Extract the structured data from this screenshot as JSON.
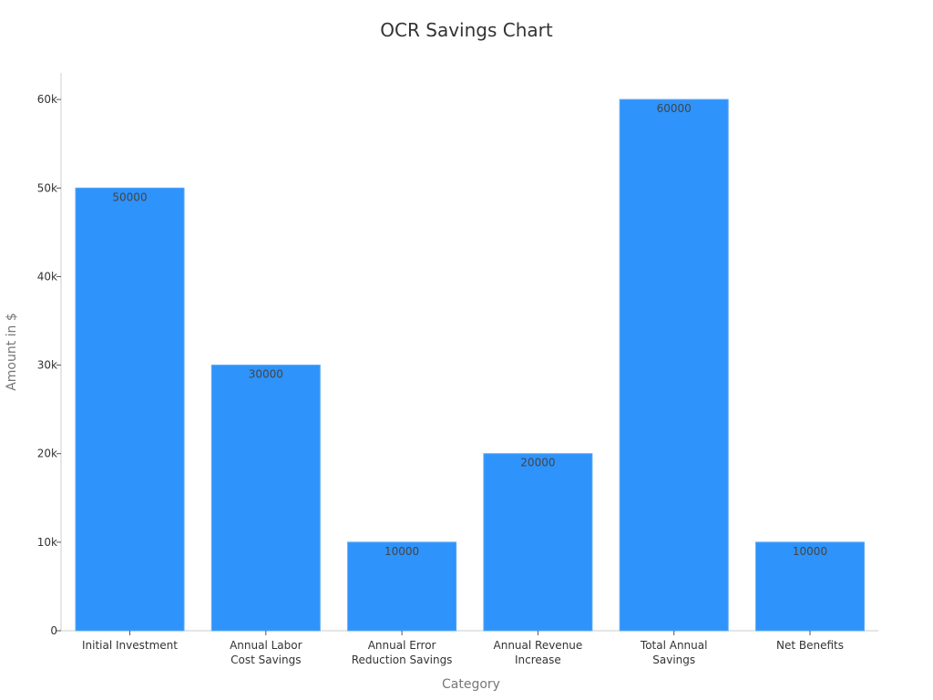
{
  "chart_data": {
    "type": "bar",
    "title": "OCR Savings Chart",
    "xlabel": "Category",
    "ylabel": "Amount in $",
    "categories": [
      [
        "Initial Investment"
      ],
      [
        "Annual Labor",
        "Cost Savings"
      ],
      [
        "Annual Error",
        "Reduction Savings"
      ],
      [
        "Annual Revenue",
        "Increase"
      ],
      [
        "Total Annual",
        "Savings"
      ],
      [
        "Net Benefits"
      ]
    ],
    "values": [
      50000,
      30000,
      10000,
      20000,
      60000,
      10000
    ],
    "value_labels": [
      "50000",
      "30000",
      "10000",
      "20000",
      "60000",
      "10000"
    ],
    "ylim": [
      0,
      63000
    ],
    "yticks": [
      0,
      10000,
      20000,
      30000,
      40000,
      50000,
      60000
    ],
    "ytick_labels": [
      "0",
      "10k",
      "20k",
      "30k",
      "40k",
      "50k",
      "60k"
    ],
    "grid": false,
    "legend": "none",
    "colors": {
      "bar": "#2E93FA",
      "bar_edge": "#5AA9F7",
      "axis": "#CCCCCC",
      "tick": "#555555"
    }
  }
}
